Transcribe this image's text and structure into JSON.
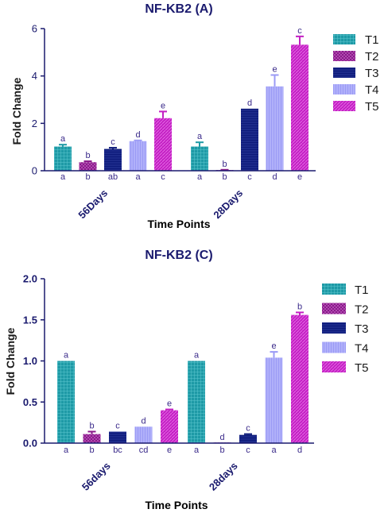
{
  "chart_data": [
    {
      "type": "bar",
      "title": "NF-KB2 (A)",
      "xlabel": "Time Points",
      "ylabel": "Fold Change",
      "ylim": [
        0,
        6
      ],
      "yticks": [
        "0",
        "2",
        "4",
        "6"
      ],
      "categories": [
        "56Days",
        "28Days"
      ],
      "legend": [
        "T1",
        "T2",
        "T3",
        "T4",
        "T5"
      ],
      "legend_position": "right",
      "series": [
        {
          "name": "T1",
          "values": [
            1.02,
            1.02
          ],
          "errors": [
            0.08,
            0.18
          ],
          "above": [
            "a",
            "a"
          ],
          "below": [
            "a",
            "a"
          ],
          "color": "#1e9aa6",
          "pattern": "grid"
        },
        {
          "name": "T2",
          "values": [
            0.36,
            0.03
          ],
          "errors": [
            0.04,
            0.01
          ],
          "above": [
            "b",
            "b"
          ],
          "below": [
            "b",
            "b"
          ],
          "color": "#8a1a8a",
          "pattern": "checker"
        },
        {
          "name": "T3",
          "values": [
            0.92,
            2.62
          ],
          "errors": [
            0.05,
            0.0
          ],
          "above": [
            "c",
            "d"
          ],
          "below": [
            "ab",
            "c"
          ],
          "color": "#0d1a7a",
          "pattern": "hline"
        },
        {
          "name": "T4",
          "values": [
            1.25,
            3.56
          ],
          "errors": [
            0.03,
            0.48
          ],
          "above": [
            "d",
            "e"
          ],
          "below": [
            "a",
            "d"
          ],
          "color": "#9b9bf5",
          "pattern": "vline"
        },
        {
          "name": "T5",
          "values": [
            2.22,
            5.32
          ],
          "errors": [
            0.28,
            0.35
          ],
          "above": [
            "e",
            "c"
          ],
          "below": [
            "c",
            "e"
          ],
          "color": "#c31fc3",
          "pattern": "diag"
        }
      ]
    },
    {
      "type": "bar",
      "title": "NF-KB2 (C)",
      "xlabel": "Time Points",
      "ylabel": "Fold Change",
      "ylim": [
        0,
        2.0
      ],
      "yticks": [
        "0.0",
        "0.5",
        "1.0",
        "1.5",
        "2.0"
      ],
      "categories": [
        "56days",
        "28days"
      ],
      "legend": [
        "T1",
        "T2",
        "T3",
        "T4",
        "T5"
      ],
      "legend_position": "right",
      "series": [
        {
          "name": "T1",
          "values": [
            1.0,
            1.0
          ],
          "errors": [
            0.0,
            0.0
          ],
          "above": [
            "a",
            "a"
          ],
          "below": [
            "a",
            "a"
          ],
          "color": "#1e9aa6",
          "pattern": "grid"
        },
        {
          "name": "T2",
          "values": [
            0.11,
            0.0
          ],
          "errors": [
            0.03,
            0.0
          ],
          "above": [
            "b",
            "d"
          ],
          "below": [
            "b",
            "b"
          ],
          "color": "#8a1a8a",
          "pattern": "checker"
        },
        {
          "name": "T3",
          "values": [
            0.14,
            0.1
          ],
          "errors": [
            0.0,
            0.01
          ],
          "above": [
            "c",
            "c"
          ],
          "below": [
            "bc",
            "c"
          ],
          "color": "#0d1a7a",
          "pattern": "hline"
        },
        {
          "name": "T4",
          "values": [
            0.2,
            1.04
          ],
          "errors": [
            0.0,
            0.07
          ],
          "above": [
            "d",
            "e"
          ],
          "below": [
            "cd",
            "a"
          ],
          "color": "#9b9bf5",
          "pattern": "vline"
        },
        {
          "name": "T5",
          "values": [
            0.4,
            1.56
          ],
          "errors": [
            0.01,
            0.03
          ],
          "above": [
            "e",
            "b"
          ],
          "below": [
            "e",
            "d"
          ],
          "color": "#c31fc3",
          "pattern": "diag"
        }
      ]
    }
  ]
}
